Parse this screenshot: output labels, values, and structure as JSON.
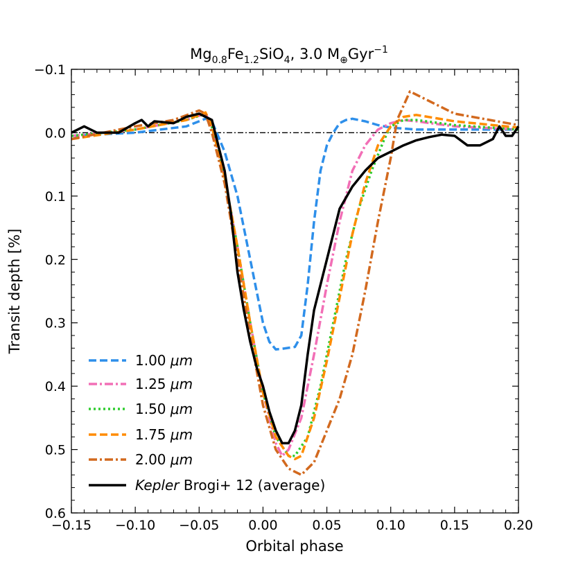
{
  "chart_data": {
    "type": "line",
    "title": {
      "base1": "Mg",
      "sub1": "0.8",
      "base2": "Fe",
      "sub2": "1.2",
      "base3": "SiO",
      "sub3": "4",
      "rate": ", 3.0 M",
      "earth_symbol": "⊕",
      "unit": "Gyr",
      "sup": "−1"
    },
    "xlabel": "Orbital phase",
    "ylabel": "Transit depth [%]",
    "xlim": [
      -0.15,
      0.2
    ],
    "ylim": [
      0.6,
      -0.1
    ],
    "xticks": [
      -0.15,
      -0.1,
      -0.05,
      0.0,
      0.05,
      0.1,
      0.15,
      0.2
    ],
    "xtick_labels": [
      "−0.15",
      "−0.10",
      "−0.05",
      "0.00",
      "0.05",
      "0.10",
      "0.15",
      "0.20"
    ],
    "yticks": [
      -0.1,
      0.0,
      0.1,
      0.2,
      0.3,
      0.4,
      0.5,
      0.6
    ],
    "ytick_labels": [
      "−0.1",
      "0.0",
      "0.1",
      "0.2",
      "0.3",
      "0.4",
      "0.5",
      "0.6"
    ],
    "reference_line": 0.0,
    "legend_position": "lower-left",
    "series": [
      {
        "name": "1.00 μm",
        "legend_value": "1.00",
        "legend_unit": "μm",
        "color": "#2e8fea",
        "style": "dashed",
        "x": [
          -0.15,
          -0.1,
          -0.06,
          -0.045,
          -0.04,
          -0.03,
          -0.02,
          -0.01,
          0.0,
          0.005,
          0.01,
          0.015,
          0.025,
          0.03,
          0.035,
          0.04,
          0.045,
          0.05,
          0.055,
          0.06,
          0.065,
          0.07,
          0.08,
          0.09,
          0.1,
          0.12,
          0.15,
          0.2
        ],
        "y": [
          0.005,
          0.0,
          -0.01,
          -0.022,
          -0.018,
          0.03,
          0.1,
          0.2,
          0.3,
          0.33,
          0.342,
          0.341,
          0.338,
          0.32,
          0.24,
          0.14,
          0.06,
          0.02,
          0.0,
          -0.015,
          -0.02,
          -0.022,
          -0.018,
          -0.012,
          -0.008,
          -0.005,
          -0.005,
          -0.005
        ]
      },
      {
        "name": "1.25 μm",
        "legend_value": "1.25",
        "legend_unit": "μm",
        "color": "#f26fb6",
        "style": "dashdot",
        "x": [
          -0.15,
          -0.1,
          -0.06,
          -0.045,
          -0.04,
          -0.03,
          -0.02,
          -0.01,
          0.0,
          0.01,
          0.015,
          0.02,
          0.03,
          0.04,
          0.05,
          0.06,
          0.07,
          0.08,
          0.09,
          0.1,
          0.11,
          0.12,
          0.15,
          0.2
        ],
        "y": [
          0.005,
          -0.005,
          -0.02,
          -0.03,
          -0.01,
          0.07,
          0.18,
          0.3,
          0.41,
          0.49,
          0.51,
          0.5,
          0.45,
          0.35,
          0.24,
          0.14,
          0.06,
          0.02,
          -0.005,
          -0.015,
          -0.02,
          -0.018,
          -0.01,
          -0.005
        ]
      },
      {
        "name": "1.50 μm",
        "legend_value": "1.50",
        "legend_unit": "μm",
        "color": "#2fcc2f",
        "style": "dotted",
        "x": [
          -0.15,
          -0.1,
          -0.06,
          -0.045,
          -0.04,
          -0.03,
          -0.02,
          -0.01,
          0.0,
          0.01,
          0.02,
          0.025,
          0.035,
          0.045,
          0.055,
          0.065,
          0.075,
          0.085,
          0.095,
          0.1,
          0.11,
          0.12,
          0.15,
          0.2
        ],
        "y": [
          0.005,
          -0.005,
          -0.02,
          -0.03,
          -0.01,
          0.07,
          0.18,
          0.3,
          0.41,
          0.48,
          0.51,
          0.51,
          0.48,
          0.4,
          0.3,
          0.2,
          0.12,
          0.06,
          0.01,
          -0.01,
          -0.02,
          -0.02,
          -0.012,
          -0.005
        ]
      },
      {
        "name": "1.75 μm",
        "legend_value": "1.75",
        "legend_unit": "μm",
        "color": "#ff8c00",
        "style": "dashed",
        "x": [
          -0.15,
          -0.1,
          -0.06,
          -0.045,
          -0.04,
          -0.03,
          -0.02,
          -0.01,
          0.0,
          0.01,
          0.02,
          0.025,
          0.03,
          0.04,
          0.05,
          0.06,
          0.07,
          0.08,
          0.09,
          0.1,
          0.11,
          0.12,
          0.15,
          0.2
        ],
        "y": [
          0.01,
          -0.005,
          -0.02,
          -0.032,
          -0.01,
          0.07,
          0.18,
          0.3,
          0.41,
          0.48,
          0.51,
          0.515,
          0.51,
          0.45,
          0.36,
          0.26,
          0.16,
          0.08,
          0.02,
          -0.01,
          -0.025,
          -0.028,
          -0.018,
          -0.008
        ]
      },
      {
        "name": "2.00 μm",
        "legend_value": "2.00",
        "legend_unit": "μm",
        "color": "#d2691e",
        "style": "dashdot",
        "x": [
          -0.15,
          -0.1,
          -0.07,
          -0.05,
          -0.045,
          -0.04,
          -0.03,
          -0.02,
          -0.01,
          0.0,
          0.01,
          0.02,
          0.03,
          0.04,
          0.05,
          0.06,
          0.07,
          0.08,
          0.09,
          0.1,
          0.105,
          0.115,
          0.13,
          0.15,
          0.2
        ],
        "y": [
          0.01,
          -0.01,
          -0.02,
          -0.035,
          -0.03,
          0.0,
          0.08,
          0.2,
          0.32,
          0.43,
          0.5,
          0.53,
          0.54,
          0.52,
          0.47,
          0.42,
          0.35,
          0.25,
          0.14,
          0.04,
          -0.02,
          -0.065,
          -0.05,
          -0.03,
          -0.012
        ]
      },
      {
        "name": "Kepler Brogi+ 12 (average)",
        "legend_italic": "Kepler",
        "legend_rest": " Brogi+ 12 (average)",
        "color": "#000000",
        "style": "solid",
        "x": [
          -0.15,
          -0.14,
          -0.13,
          -0.113,
          -0.1,
          -0.095,
          -0.09,
          -0.085,
          -0.07,
          -0.06,
          -0.05,
          -0.04,
          -0.035,
          -0.03,
          -0.025,
          -0.02,
          -0.015,
          -0.01,
          -0.005,
          0.0,
          0.005,
          0.01,
          0.015,
          0.02,
          0.025,
          0.03,
          0.035,
          0.04,
          0.05,
          0.06,
          0.07,
          0.08,
          0.09,
          0.1,
          0.11,
          0.12,
          0.13,
          0.14,
          0.15,
          0.16,
          0.17,
          0.18,
          0.185,
          0.19,
          0.195,
          0.2
        ],
        "y": [
          0.0,
          -0.01,
          0.0,
          0.0,
          -0.015,
          -0.02,
          -0.01,
          -0.018,
          -0.015,
          -0.025,
          -0.03,
          -0.02,
          0.02,
          0.06,
          0.13,
          0.22,
          0.28,
          0.33,
          0.37,
          0.4,
          0.44,
          0.47,
          0.49,
          0.49,
          0.47,
          0.43,
          0.35,
          0.28,
          0.2,
          0.12,
          0.085,
          0.06,
          0.04,
          0.03,
          0.02,
          0.012,
          0.007,
          0.003,
          0.005,
          0.02,
          0.02,
          0.01,
          -0.01,
          0.005,
          0.005,
          -0.01
        ]
      }
    ]
  }
}
